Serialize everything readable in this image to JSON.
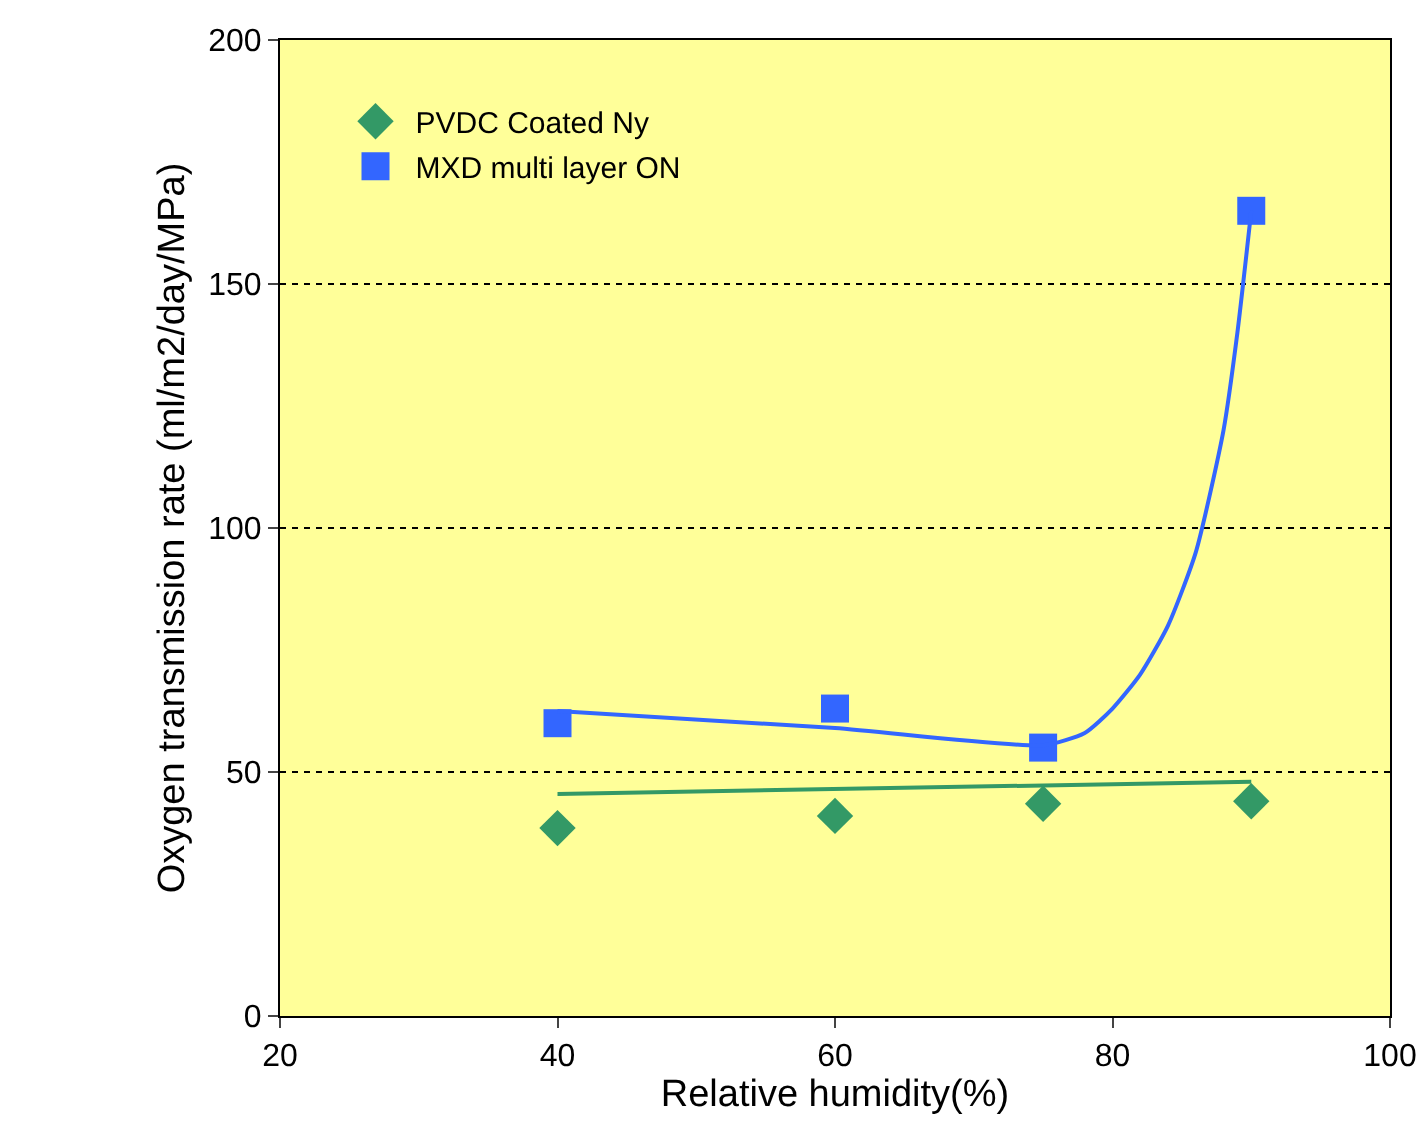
{
  "chart_data": {
    "type": "scatter",
    "xlabel": "Relative humidity(%)",
    "ylabel": "Oxygen transmission rate (ml/m2/day/MPa)",
    "xlim": [
      20,
      100
    ],
    "xticks": [
      20,
      40,
      60,
      80,
      100
    ],
    "ylim": [
      0,
      200
    ],
    "yticks": [
      0,
      50,
      100,
      150,
      200
    ],
    "grid": "y",
    "legend": "top left",
    "series": [
      {
        "name": "PVDC Coated Ny",
        "color": "#339966",
        "marker": "diamond",
        "x": [
          40,
          60,
          75,
          90
        ],
        "values": [
          38.5,
          41,
          43.5,
          44
        ]
      },
      {
        "name": "MXD multi layer ON",
        "color": "#3366ff",
        "marker": "square",
        "x": [
          40,
          60,
          75,
          90
        ],
        "values": [
          60,
          63,
          55,
          165
        ]
      },
      {
        "type": "line",
        "color": "#339966",
        "marker": "none",
        "x": [
          40,
          90
        ],
        "values": [
          45.5,
          48
        ]
      },
      {
        "type": "line",
        "color": "#3366ff",
        "marker": "none",
        "x": [
          40,
          60,
          75,
          78,
          80,
          82,
          84,
          86,
          88,
          89,
          90
        ],
        "values": [
          62.5,
          59,
          55.5,
          58,
          63,
          70,
          80,
          95,
          120,
          140,
          165
        ]
      }
    ]
  }
}
